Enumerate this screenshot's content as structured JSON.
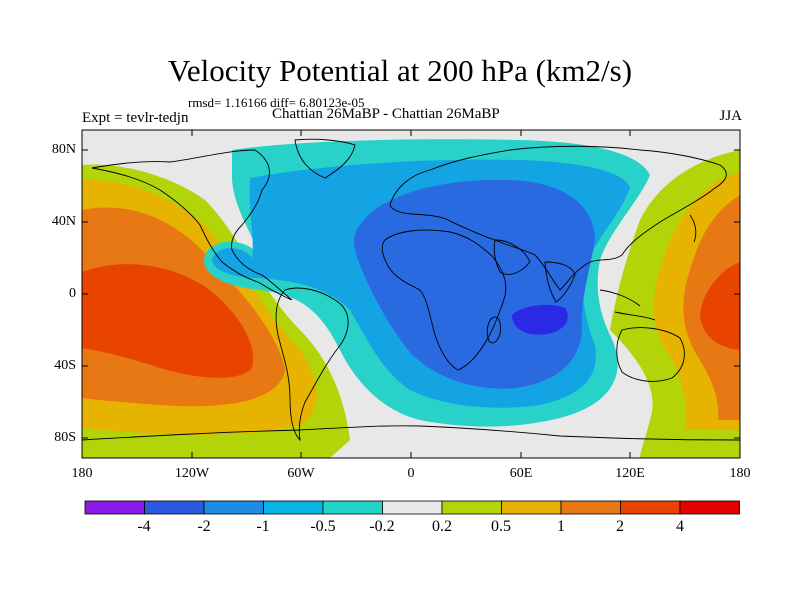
{
  "title": "Velocity Potential at 200 hPa (km2/s)",
  "stats": "rmsd= 1.16166 diff= 6.80123e-05",
  "left_label": "Expt = tevlr-tedjn",
  "center_label": "Chattian  26MaBP - Chattian  26MaBP",
  "right_label": "JJA",
  "lat_ticks": [
    "80N",
    "40N",
    "0",
    "40S",
    "80S"
  ],
  "lon_ticks": [
    "180",
    "120W",
    "60W",
    "0",
    "60E",
    "120E",
    "180"
  ],
  "colorbar": {
    "labels": [
      "-4",
      "-2",
      "-1",
      "-0.5",
      "-0.2",
      "0.2",
      "0.5",
      "1",
      "2",
      "4"
    ],
    "colors": [
      "#8a1be6",
      "#2a5ae0",
      "#1e8ce0",
      "#0ab4e8",
      "#22d4c8",
      "#e8e8e8",
      "#b4d40a",
      "#e6b400",
      "#e87814",
      "#e84400",
      "#e60000"
    ]
  },
  "field_colors": {
    "deep_blue": "#2a2ae6",
    "blue": "#2a6ae0",
    "light_blue": "#14a4e4",
    "cyan": "#28d2c8",
    "neutral": "#e8e8e8",
    "yellow_green": "#b4d40a",
    "gold": "#e6b400",
    "orange": "#e87814",
    "red_orange": "#e84400"
  }
}
